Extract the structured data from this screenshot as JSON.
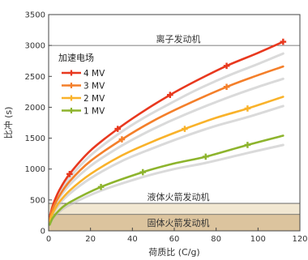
{
  "chart_data": {
    "type": "line",
    "xlabel": "荷质比 (C/g)",
    "ylabel": "比冲 (s)",
    "xlim": [
      0,
      120
    ],
    "ylim": [
      0,
      3500
    ],
    "xticks": [
      0,
      20,
      40,
      60,
      80,
      100,
      120
    ],
    "yticks": [
      0,
      500,
      1000,
      1500,
      2000,
      2500,
      3000,
      3500
    ],
    "grid": false,
    "legend": {
      "title": "加速电场",
      "placement": "top-left",
      "entries": [
        "4 MV",
        "3 MV",
        "2 MV",
        "1 MV"
      ]
    },
    "series": [
      {
        "name": "4 MV",
        "color": "#e8381e",
        "x": [
          0.5,
          2,
          5,
          10,
          20,
          33,
          45,
          58,
          70,
          85,
          100,
          112
        ],
        "y": [
          210,
          410,
          650,
          920,
          1300,
          1650,
          1930,
          2200,
          2420,
          2670,
          2880,
          3060
        ],
        "markers_x": [
          10,
          33,
          58,
          85,
          112
        ]
      },
      {
        "name": "3 MV",
        "color": "#f47f2a",
        "x": [
          0.5,
          2,
          5,
          10,
          20,
          35,
          50,
          65,
          85,
          100,
          112
        ],
        "y": [
          180,
          360,
          560,
          800,
          1130,
          1480,
          1780,
          2030,
          2330,
          2520,
          2660
        ],
        "markers_x": [
          35,
          85
        ]
      },
      {
        "name": "2 MV",
        "color": "#f9b22a",
        "x": [
          0.5,
          2,
          5,
          10,
          20,
          35,
          50,
          65,
          80,
          95,
          112
        ],
        "y": [
          150,
          290,
          460,
          650,
          920,
          1220,
          1450,
          1650,
          1830,
          1980,
          2170
        ],
        "markers_x": [
          65,
          95
        ]
      },
      {
        "name": "1 MV",
        "color": "#8db42d",
        "x": [
          0.5,
          2,
          5,
          10,
          25,
          45,
          60,
          75,
          95,
          112
        ],
        "y": [
          100,
          210,
          330,
          460,
          710,
          950,
          1090,
          1200,
          1390,
          1540
        ],
        "markers_x": [
          25,
          45,
          75,
          95
        ]
      }
    ],
    "shadow_series": [
      {
        "x": [
          0.5,
          2,
          5,
          10,
          20,
          33,
          45,
          58,
          70,
          85,
          100,
          112
        ],
        "y": [
          195,
          385,
          610,
          860,
          1220,
          1560,
          1820,
          2060,
          2270,
          2500,
          2700,
          2870
        ]
      },
      {
        "x": [
          0.5,
          2,
          5,
          10,
          20,
          35,
          50,
          65,
          85,
          100,
          112
        ],
        "y": [
          170,
          335,
          525,
          745,
          1050,
          1380,
          1650,
          1880,
          2150,
          2330,
          2460
        ]
      },
      {
        "x": [
          0.5,
          2,
          5,
          10,
          20,
          35,
          50,
          65,
          80,
          95,
          112
        ],
        "y": [
          140,
          270,
          430,
          600,
          850,
          1130,
          1340,
          1530,
          1700,
          1840,
          2020
        ]
      },
      {
        "x": [
          0.5,
          2,
          5,
          10,
          25,
          45,
          60,
          75,
          95,
          112
        ],
        "y": [
          95,
          195,
          305,
          420,
          650,
          870,
          1000,
          1100,
          1260,
          1390
        ]
      }
    ],
    "reference_bands": [
      {
        "label": "离子发动机",
        "y": 3000
      },
      {
        "label": "液体火箭发动机",
        "y": 445
      },
      {
        "label": "固体火箭发动机",
        "y_range": [
          0,
          265
        ]
      }
    ]
  }
}
